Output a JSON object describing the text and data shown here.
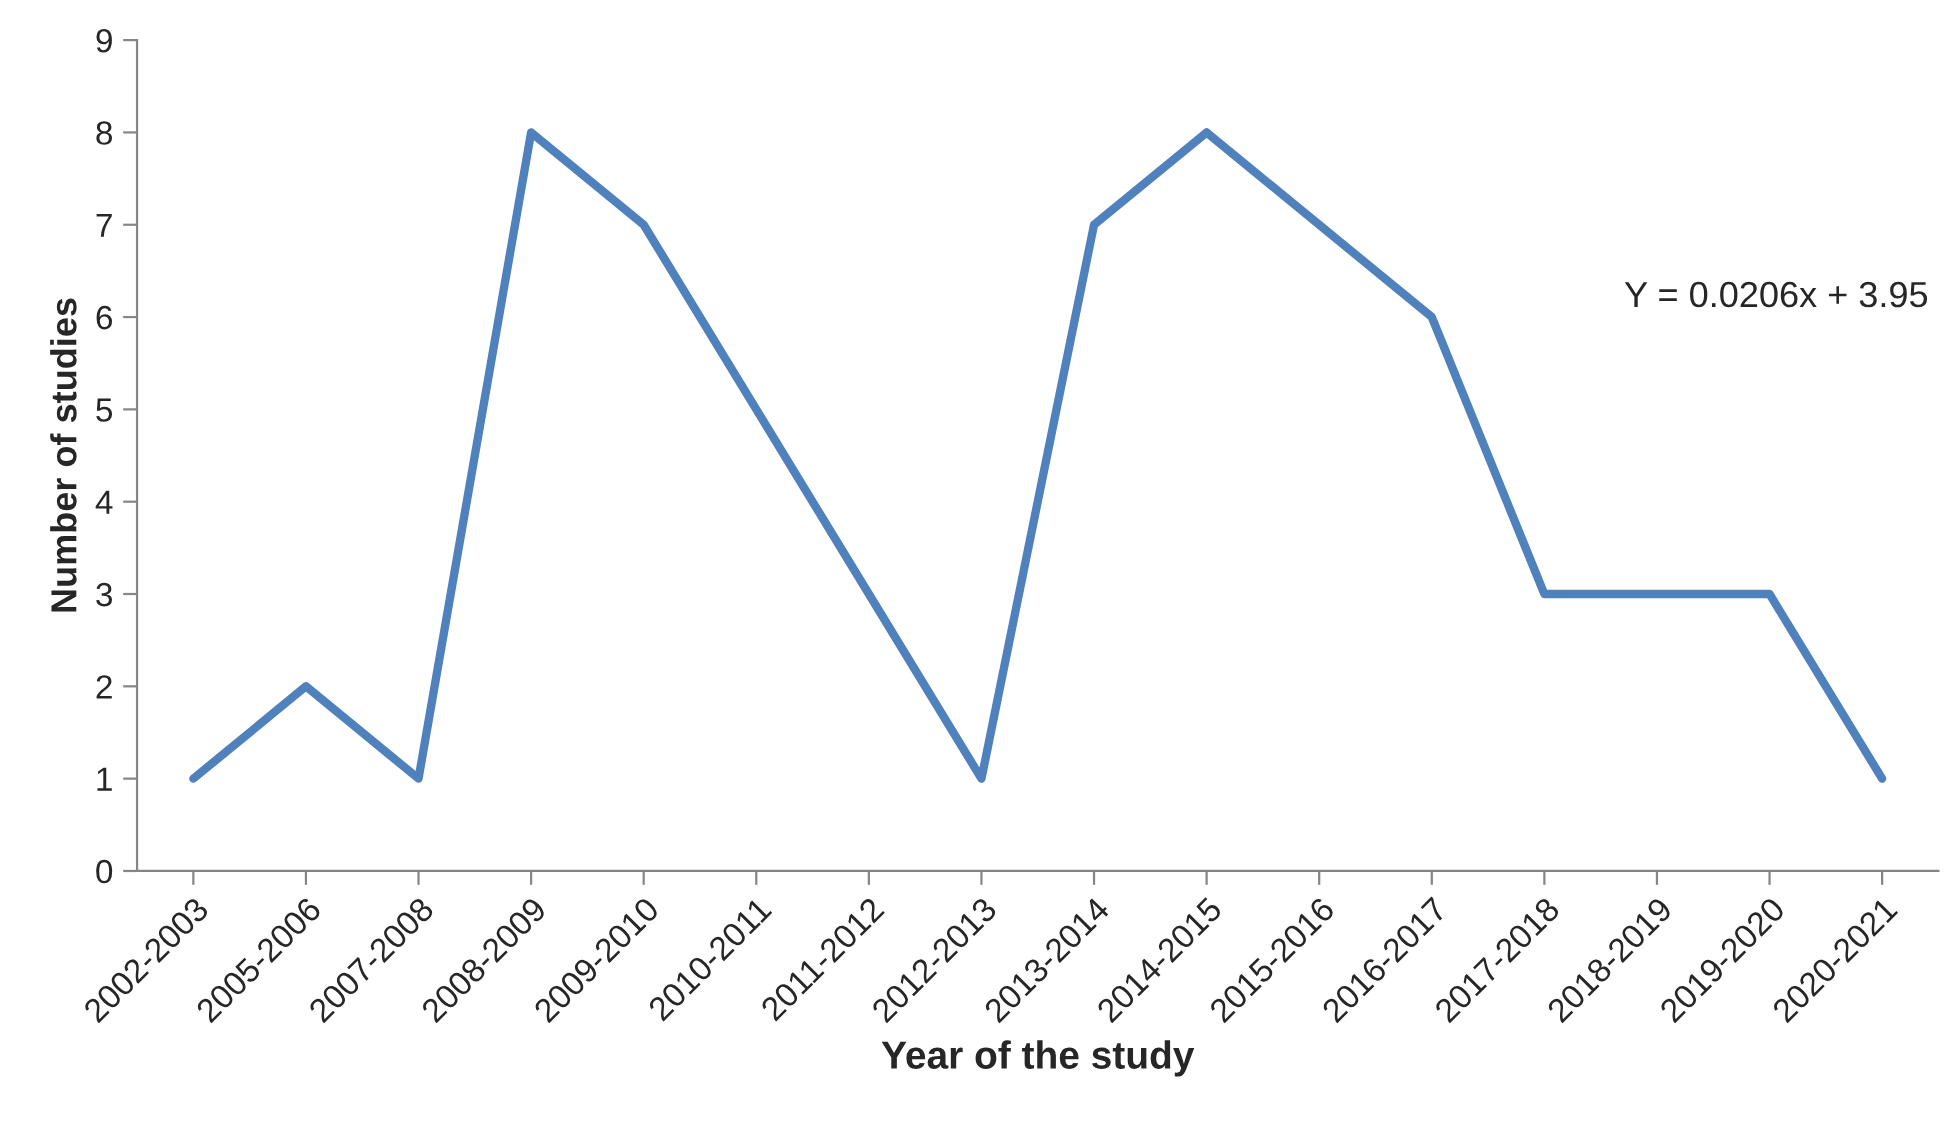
{
  "chart_data": {
    "type": "line",
    "xlabel": "Year of the study",
    "ylabel": "Number of studies",
    "categories": [
      "2002-2003",
      "2005-2006",
      "2007-2008",
      "2008-2009",
      "2009-2010",
      "2010-2011",
      "2011-2012",
      "2012-2013",
      "2013-2014",
      "2014-2015",
      "2015-2016",
      "2016-2017",
      "2017-2018",
      "2018-2019",
      "2019-2020",
      "2020-2021"
    ],
    "series": [
      {
        "color": "#4f81bd",
        "values": [
          1,
          2,
          1,
          8,
          7,
          5,
          3,
          1,
          7,
          8,
          7,
          6,
          3,
          3,
          3,
          1
        ]
      }
    ],
    "ylim": [
      0,
      9
    ],
    "yticks": [
      0,
      1,
      2,
      3,
      4,
      5,
      6,
      7,
      8,
      9
    ],
    "annotations": [
      "Y = 0.0206x + 3.95"
    ],
    "marker": "none",
    "line_style": "solid",
    "grid": false,
    "legend": false
  }
}
